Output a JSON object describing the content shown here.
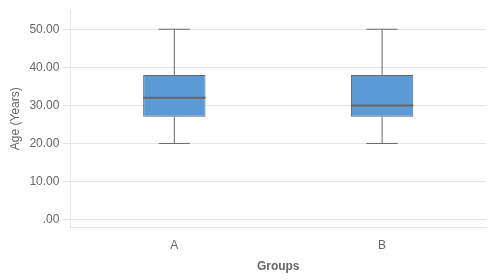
{
  "chart_data": {
    "type": "box",
    "xlabel": "Groups",
    "ylabel": "Age (Years)",
    "categories": [
      "A",
      "B"
    ],
    "values": [
      {
        "min": 20,
        "q1": 27,
        "median": 32,
        "q3": 38,
        "max": 50
      },
      {
        "min": 20,
        "q1": 27,
        "median": 30,
        "q3": 38,
        "max": 50
      }
    ],
    "color": "#5B9BD5",
    "ylim": [
      -2,
      55
    ],
    "yticks": [
      {
        "value": 0,
        "label": ".00"
      },
      {
        "value": 10,
        "label": "10.00"
      },
      {
        "value": 20,
        "label": "20.00"
      },
      {
        "value": 30,
        "label": "30.00"
      },
      {
        "value": 40,
        "label": "40.00"
      },
      {
        "value": 50,
        "label": "50.00"
      }
    ],
    "grid": "y"
  }
}
